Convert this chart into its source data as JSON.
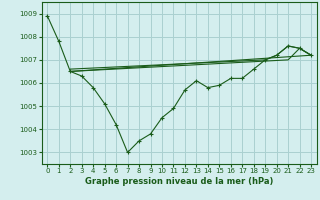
{
  "background_color": "#d4eeee",
  "grid_color": "#aad0d0",
  "line_color": "#1a5c1a",
  "xlabel": "Graphe pression niveau de la mer (hPa)",
  "xlim": [
    -0.5,
    23.5
  ],
  "ylim": [
    1002.5,
    1009.5
  ],
  "yticks": [
    1003,
    1004,
    1005,
    1006,
    1007,
    1008,
    1009
  ],
  "xticks": [
    0,
    1,
    2,
    3,
    4,
    5,
    6,
    7,
    8,
    9,
    10,
    11,
    12,
    13,
    14,
    15,
    16,
    17,
    18,
    19,
    20,
    21,
    22,
    23
  ],
  "series_main": {
    "x": [
      0,
      1,
      2,
      3,
      4,
      5,
      6,
      7,
      8,
      9,
      10,
      11,
      12,
      13,
      14,
      15,
      16,
      17,
      18,
      19,
      20,
      21,
      22,
      23
    ],
    "y": [
      1008.9,
      1007.8,
      1006.5,
      1006.3,
      1005.8,
      1005.1,
      1004.2,
      1003.0,
      1003.5,
      1003.8,
      1004.5,
      1004.9,
      1005.7,
      1006.1,
      1005.8,
      1005.9,
      1006.2,
      1006.2,
      1006.6,
      1007.0,
      1007.2,
      1007.6,
      1007.5,
      1007.2
    ]
  },
  "series_flat1": {
    "x": [
      2,
      23
    ],
    "y": [
      1006.5,
      1007.2
    ]
  },
  "series_flat2": {
    "x": [
      2,
      21,
      22,
      23
    ],
    "y": [
      1006.5,
      1007.0,
      1007.5,
      1007.2
    ]
  },
  "series_flat3": {
    "x": [
      2,
      19,
      20,
      21,
      22,
      23
    ],
    "y": [
      1006.6,
      1007.0,
      1007.2,
      1007.6,
      1007.5,
      1007.2
    ]
  }
}
